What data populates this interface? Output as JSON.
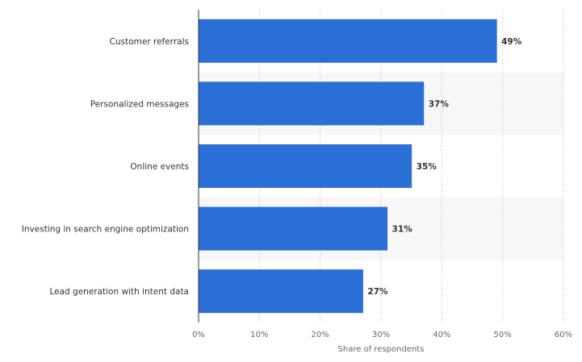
{
  "chart_data": {
    "type": "bar",
    "orientation": "horizontal",
    "categories": [
      "Customer referrals",
      "Personalized messages",
      "Online events",
      "Investing in search engine optimization",
      "Lead generation with intent data"
    ],
    "values": [
      49,
      37,
      35,
      31,
      27
    ],
    "data_labels": [
      "49%",
      "37%",
      "35%",
      "31%",
      "27%"
    ],
    "xlabel": "Share of respondents",
    "ylabel": "",
    "xlim": [
      0,
      60
    ],
    "xticks": [
      0,
      10,
      20,
      30,
      40,
      50,
      60
    ],
    "xtick_labels": [
      "0%",
      "10%",
      "20%",
      "30%",
      "40%",
      "50%",
      "60%"
    ],
    "grid": true,
    "colors": {
      "bar": "#2a6fd6",
      "band": "#f7f7f7",
      "grid": "#bbbbbb"
    }
  }
}
